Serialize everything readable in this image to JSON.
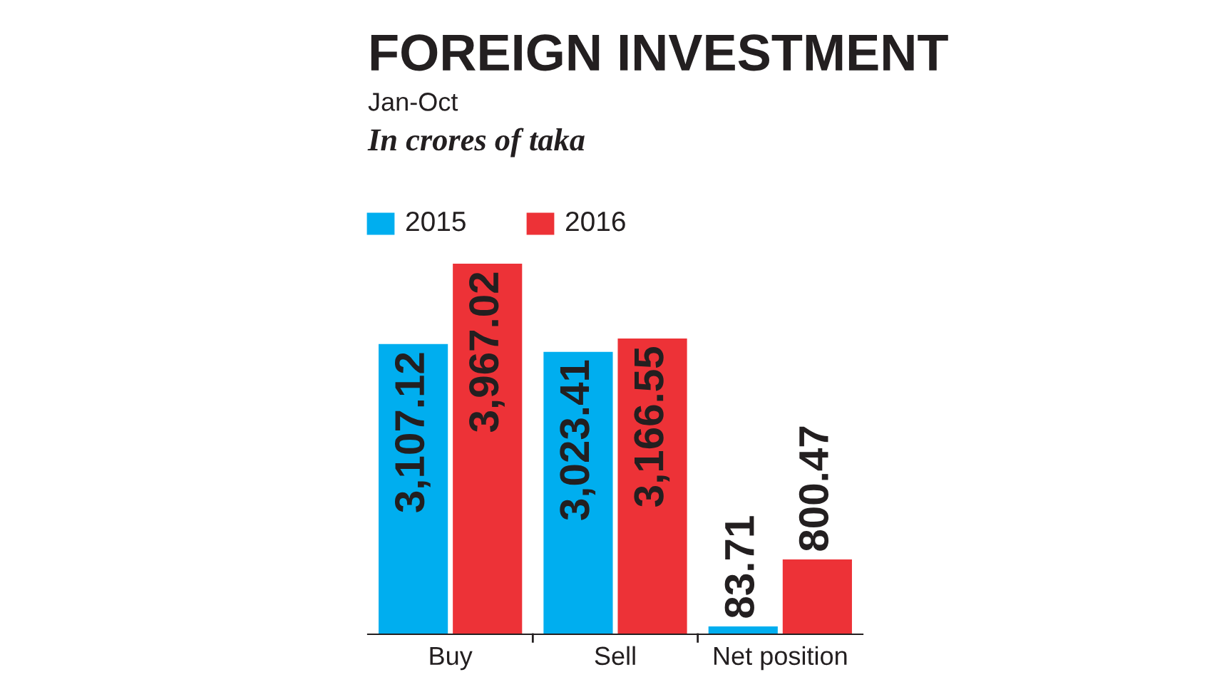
{
  "chart_data": {
    "type": "bar",
    "title": "FOREIGN INVESTMENT",
    "subtitle": "Jan-Oct",
    "ylabel": "In crores of taka",
    "categories": [
      "Buy",
      "Sell",
      "Net position"
    ],
    "series": [
      {
        "name": "2015",
        "color": "#00aeef",
        "values": [
          3107.12,
          3023.41,
          83.71
        ],
        "value_labels": [
          "3,107.12",
          "3,023.41",
          "83.71"
        ]
      },
      {
        "name": "2016",
        "color": "#ed3237",
        "values": [
          3967.02,
          3166.55,
          800.47
        ],
        "value_labels": [
          "3,967.02",
          "3,166.55",
          "800.47"
        ]
      }
    ],
    "tick_labels": "x",
    "legend": "top left",
    "grid": false
  }
}
